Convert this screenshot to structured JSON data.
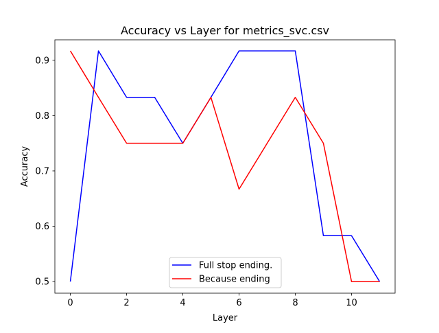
{
  "chart_data": {
    "type": "line",
    "title": "Accuracy vs Layer for metrics_svc.csv",
    "xlabel": "Layer",
    "ylabel": "Accuracy",
    "x": [
      0,
      1,
      2,
      3,
      4,
      5,
      6,
      7,
      8,
      9,
      10,
      11
    ],
    "xlim": [
      -0.55,
      11.55
    ],
    "ylim": [
      0.479,
      0.937
    ],
    "xticks": [
      0,
      2,
      4,
      6,
      8,
      10
    ],
    "yticks": [
      0.5,
      0.6,
      0.7,
      0.8,
      0.9
    ],
    "xtick_labels": [
      "0",
      "2",
      "4",
      "6",
      "8",
      "10"
    ],
    "ytick_labels": [
      "0.5",
      "0.6",
      "0.7",
      "0.8",
      "0.9"
    ],
    "grid": false,
    "legend_position": "bottom-center",
    "series": [
      {
        "name": "Full stop ending.",
        "color": "#0000ff",
        "values": [
          0.5,
          0.917,
          0.833,
          0.833,
          0.75,
          0.833,
          0.917,
          0.917,
          0.917,
          0.583,
          0.583,
          0.5
        ]
      },
      {
        "name": "Because ending",
        "color": "#ff0000",
        "values": [
          0.917,
          0.833,
          0.75,
          0.75,
          0.75,
          0.833,
          0.667,
          0.75,
          0.833,
          0.75,
          0.5,
          0.5
        ]
      }
    ]
  }
}
